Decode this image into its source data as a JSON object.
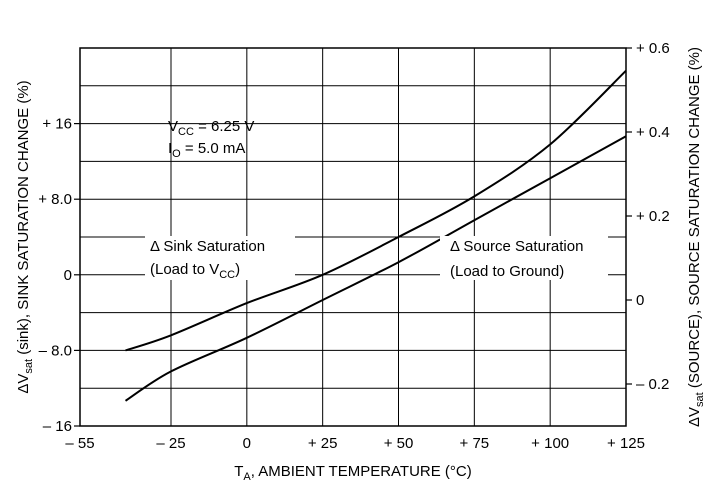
{
  "chart_data": {
    "type": "line",
    "title": "",
    "x": [
      -40,
      -25,
      0,
      25,
      50,
      75,
      100,
      125
    ],
    "x_ticks": [
      -55,
      -25,
      0,
      25,
      50,
      75,
      100,
      125
    ],
    "x_tick_labels": [
      "– 55",
      "– 25",
      "0",
      "+ 25",
      "+ 50",
      "+ 75",
      "+ 100",
      "+ 125"
    ],
    "xlim": [
      -55,
      125
    ],
    "xlabel": {
      "base": "T",
      "sub": "A",
      "rest": ", AMBIENT TEMPERATURE (°C)"
    },
    "left_axis": {
      "ylim": [
        -16,
        24
      ],
      "ticks": [
        -16,
        -8,
        0,
        8,
        16
      ],
      "tick_labels": [
        "– 16",
        "– 8.0",
        "0",
        "+ 8.0",
        "+ 16"
      ],
      "label": {
        "pre": "ΔV",
        "sub": "sat",
        "rest": " (sink),  SINK SATURATION CHANGE (%)"
      }
    },
    "right_axis": {
      "ylim": [
        -0.3,
        0.6
      ],
      "ticks": [
        -0.2,
        0,
        0.2,
        0.4,
        0.6
      ],
      "tick_labels": [
        "– 0.2",
        "0",
        "+ 0.2",
        "+ 0.4",
        "+ 0.6"
      ],
      "label": {
        "pre": "ΔV",
        "sub": "sat",
        "rest": " (SOURCE),  SOURCE SATURATION CHANGE (%)"
      }
    },
    "grid": true,
    "series": [
      {
        "name": "Δ Sink Saturation",
        "axis": "left",
        "x": [
          -40,
          -25,
          0,
          25,
          50,
          75,
          100,
          125
        ],
        "values": [
          -8.0,
          -6.4,
          -3.0,
          0.0,
          4.0,
          8.3,
          13.8,
          21.6
        ]
      },
      {
        "name": "Δ Source Saturation",
        "axis": "right",
        "x": [
          -40,
          -25,
          0,
          25,
          50,
          75,
          100,
          125
        ],
        "values": [
          -0.24,
          -0.17,
          -0.09,
          0.0,
          0.09,
          0.19,
          0.29,
          0.39
        ]
      }
    ],
    "annotations": {
      "conditions": [
        {
          "base": "V",
          "sub": "CC",
          "rest": " = 6.25 V"
        },
        {
          "base": "I",
          "sub": "O",
          "rest": " = 5.0 mA"
        }
      ],
      "sink": {
        "line1": "Δ Sink Saturation",
        "line2_pre": "(Load to V",
        "line2_sub": "CC",
        "line2_post": ")"
      },
      "source": {
        "line1": "Δ Source Saturation",
        "line2": "(Load to Ground)"
      }
    }
  }
}
